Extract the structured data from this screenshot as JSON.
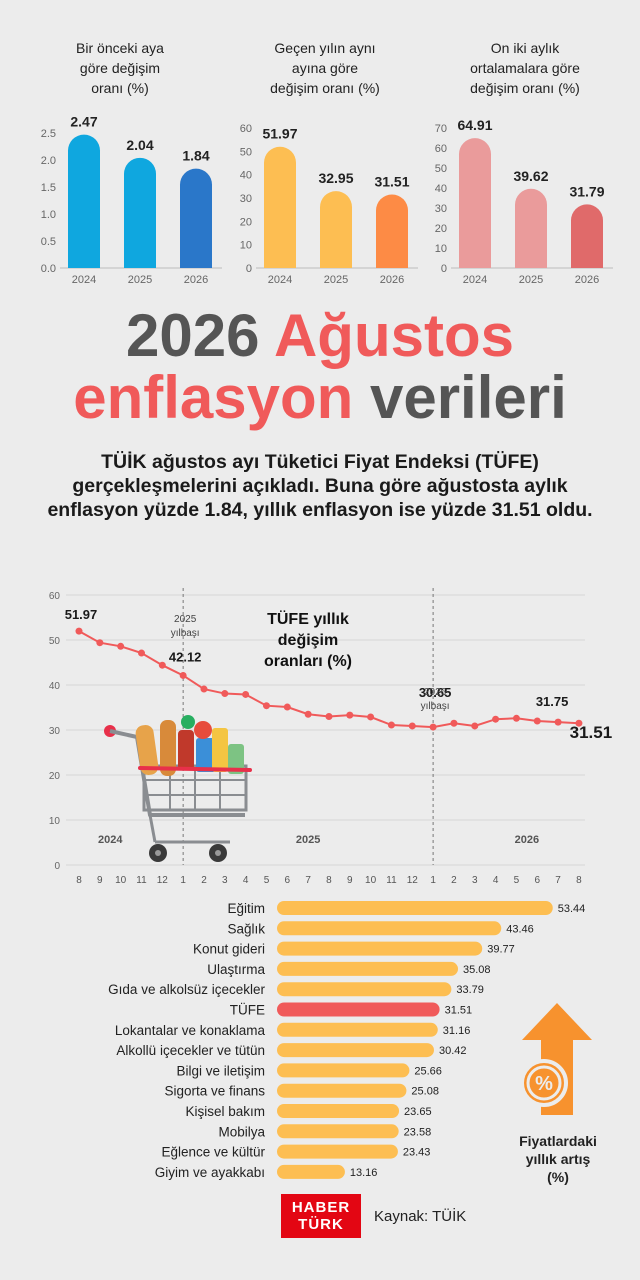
{
  "mini_charts": [
    {
      "title_lines": [
        "Bir önceki aya",
        "göre değişim",
        "oranı (%)"
      ],
      "y_ticks": [
        "0.0",
        "0.5",
        "1.0",
        "1.5",
        "2.0",
        "2.5"
      ],
      "ymax": 2.5,
      "colors": [
        "#0fa7df",
        "#0fa7df",
        "#2a77c9"
      ]
    },
    {
      "title_lines": [
        "Geçen yılın aynı",
        "ayına göre",
        "değişim oranı (%)"
      ],
      "y_ticks": [
        "0",
        "10",
        "20",
        "30",
        "40",
        "50",
        "60"
      ],
      "ymax": 60,
      "colors": [
        "#fdbe52",
        "#fdbe52",
        "#fd8b45"
      ]
    },
    {
      "title_lines": [
        "On iki aylık",
        "ortalamalara göre",
        "değişim oranı (%)"
      ],
      "y_ticks": [
        "0",
        "10",
        "20",
        "30",
        "40",
        "50",
        "60",
        "70"
      ],
      "ymax": 70,
      "colors": [
        "#ea9b9b",
        "#ea9b9b",
        "#e06a6a"
      ]
    }
  ],
  "headline": {
    "part1": "2026",
    "part2": "Ağustos",
    "part3": "enflasyon",
    "part4": "verileri"
  },
  "lead": "TÜİK ağustos ayı Tüketici Fiyat Endeksi (TÜFE) gerçekleşmelerini açıkladı. Buna göre ağustosta aylık enflasyon yüzde 1.84, yıllık enflasyon ise yüzde 31.51 oldu.",
  "line_chart_labels": {
    "title_lines": [
      "TÜFE yıllık",
      "değişim",
      "oranları (%)"
    ],
    "marker_2025": [
      "2025",
      "yılbaşı"
    ],
    "marker_2026": [
      "2026",
      "yılbaşı"
    ],
    "year_labels": [
      "2024",
      "2025",
      "2026"
    ],
    "y_ticks": [
      "0",
      "10",
      "20",
      "30",
      "40",
      "50",
      "60"
    ],
    "x_ticks": [
      "8",
      "9",
      "10",
      "11",
      "12",
      "1",
      "2",
      "3",
      "4",
      "5",
      "6",
      "7",
      "8",
      "9",
      "10",
      "11",
      "12",
      "1",
      "2",
      "3",
      "4",
      "5",
      "6",
      "7",
      "8"
    ],
    "point_labels": [
      "51.97",
      "42.12",
      "30.65",
      "31.75",
      "31.51"
    ]
  },
  "legend_lines": [
    "Fiyatlardaki",
    "yıllık artış",
    "(%)"
  ],
  "logo_lines": [
    "HABER",
    "TÜRK"
  ],
  "source": "Kaynak: TÜİK",
  "chart_data": [
    {
      "type": "bar",
      "title": "Bir önceki aya göre değişim oranı (%)",
      "categories": [
        "2024",
        "2025",
        "2026"
      ],
      "values": [
        2.47,
        2.04,
        1.84
      ],
      "ylim": [
        0,
        2.5
      ]
    },
    {
      "type": "bar",
      "title": "Geçen yılın aynı ayına göre değişim oranı (%)",
      "categories": [
        "2024",
        "2025",
        "2026"
      ],
      "values": [
        51.97,
        32.95,
        31.51
      ],
      "ylim": [
        0,
        60
      ]
    },
    {
      "type": "bar",
      "title": "On iki aylık ortalamalara göre değişim oranı (%)",
      "categories": [
        "2024",
        "2025",
        "2026"
      ],
      "values": [
        64.91,
        39.62,
        31.79
      ],
      "ylim": [
        0,
        70
      ]
    },
    {
      "type": "line",
      "title": "TÜFE yıllık değişim oranları (%)",
      "x": [
        "2024-08",
        "2024-09",
        "2024-10",
        "2024-11",
        "2024-12",
        "2025-01",
        "2025-02",
        "2025-03",
        "2025-04",
        "2025-05",
        "2025-06",
        "2025-07",
        "2025-08",
        "2025-09",
        "2025-10",
        "2025-11",
        "2025-12",
        "2026-01",
        "2026-02",
        "2026-03",
        "2026-04",
        "2026-05",
        "2026-06",
        "2026-07",
        "2026-08"
      ],
      "values": [
        51.97,
        49.4,
        48.6,
        47.1,
        44.4,
        42.12,
        39.1,
        38.1,
        37.9,
        35.4,
        35.1,
        33.5,
        33.0,
        33.3,
        32.9,
        31.1,
        30.9,
        30.65,
        31.5,
        30.9,
        32.4,
        32.6,
        32.0,
        31.75,
        31.51
      ],
      "ylim": [
        0,
        60
      ],
      "grid": true,
      "color": "#f05a5a"
    },
    {
      "type": "bar",
      "title": "Fiyatlardaki yıllık artış (%)",
      "categories": [
        "Eğitim",
        "Sağlık",
        "Konut gideri",
        "Ulaştırma",
        "Gıda ve alkolsüz içecekler",
        "TÜFE",
        "Lokantalar ve konaklama",
        "Alkollü içecekler ve tütün",
        "Bilgi ve iletişim",
        "Sigorta ve finans",
        "Kişisel bakım",
        "Mobilya",
        "Eğlence ve kültür",
        "Giyim ve ayakkabı"
      ],
      "values": [
        53.44,
        43.46,
        39.77,
        35.08,
        33.79,
        31.51,
        31.16,
        30.42,
        25.66,
        25.08,
        23.65,
        23.58,
        23.43,
        13.16
      ],
      "colors": {
        "default": "#fdbe52",
        "highlight": "#f05a5a"
      },
      "highlight": "TÜFE"
    }
  ]
}
